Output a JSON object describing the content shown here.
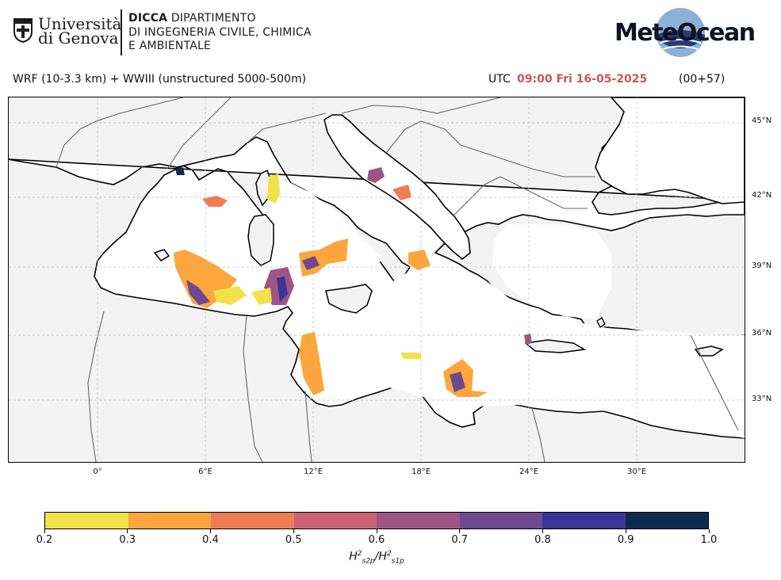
{
  "header": {
    "university_name_line1": "Università",
    "university_name_line2": "di Genova",
    "department_acronym": "DICCA",
    "department_line1_rest": " DIPARTIMENTO",
    "department_line2": "DI INGEGNERIA CIVILE, CHIMICA",
    "department_line3": "E AMBIENTALE",
    "brand_logo_text": "MeteOcean"
  },
  "title": {
    "model": "WRF (10-3.3 km) + WWIII (unstructured 5000-500m)",
    "utc_label": "UTC",
    "valid_time": "09:00 Fri 16-05-2025",
    "lead_time": "(00+57)",
    "valid_time_color": "#cc5555"
  },
  "map": {
    "latitude_labels": [
      "45°N",
      "42°N",
      "39°N",
      "36°N",
      "33°N"
    ],
    "longitude_labels": [
      "0°",
      "6°E",
      "12°E",
      "18°E",
      "24°E",
      "30°E"
    ],
    "land_color": "#f3f3f3",
    "sea_color": "#ffffff",
    "coastline_color": "#000000",
    "border_color": "#666666"
  },
  "colorbar": {
    "ticks": [
      "0.2",
      "0.3",
      "0.4",
      "0.5",
      "0.6",
      "0.7",
      "0.8",
      "0.9",
      "1.0"
    ],
    "colors": [
      "#f1e14a",
      "#fca63d",
      "#ef7d53",
      "#c96375",
      "#9e5585",
      "#6e4990",
      "#3a3598",
      "#0d2a50"
    ],
    "label_main": "H",
    "label_sup1": "2",
    "label_sub1": "s2p",
    "label_sep": "/H",
    "label_sup2": "2",
    "label_sub2": "s1p"
  }
}
